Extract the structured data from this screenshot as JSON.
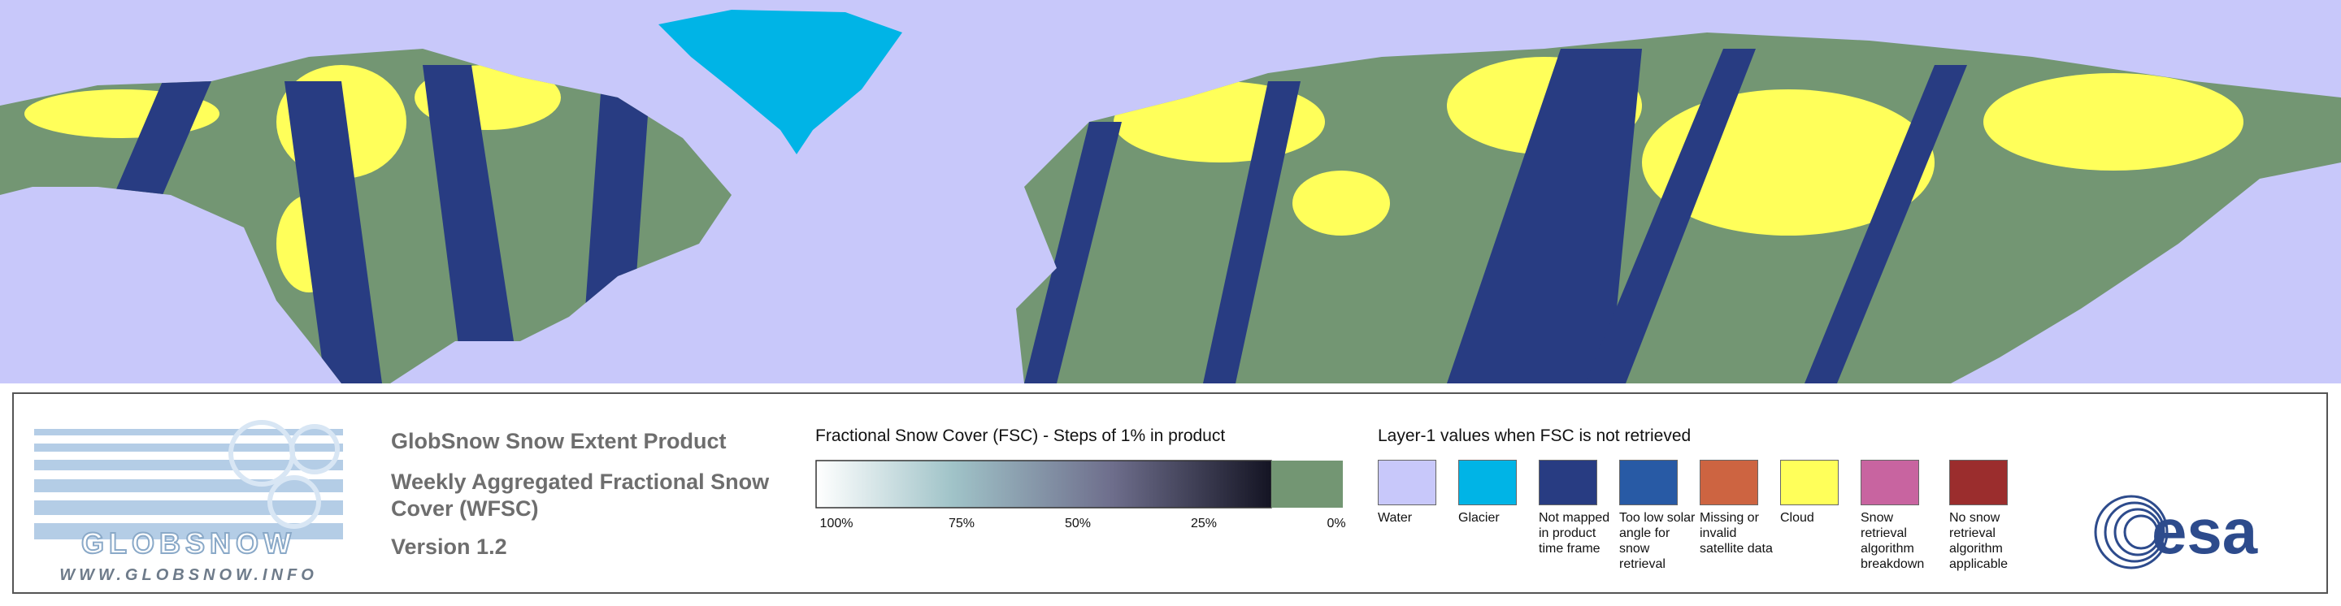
{
  "logo": {
    "brand": "GLOBSNOW",
    "url": "WWW.GLOBSNOW.INFO"
  },
  "product": {
    "title": "GlobSnow Snow Extent Product",
    "subtitle": "Weekly Aggregated Fractional Snow Cover (WFSC)",
    "version": "Version 1.2"
  },
  "fsc_scale": {
    "title": "Fractional Snow Cover (FSC) - Steps of 1% in product",
    "ticks": [
      "100%",
      "75%",
      "50%",
      "25%",
      "0%"
    ],
    "no_snow_color": "#739673"
  },
  "layer1": {
    "title": "Layer-1 values when FSC is not retrieved",
    "classes": [
      {
        "label": "Water",
        "color": "#c8c8fa"
      },
      {
        "label": "Glacier",
        "color": "#00b4e6"
      },
      {
        "label": "Not mapped in product time frame",
        "color": "#283c82"
      },
      {
        "label": "Too low solar angle for snow retrieval",
        "color": "#285aa5"
      },
      {
        "label": "Missing or invalid satellite data",
        "color": "#cd6441"
      },
      {
        "label": "Cloud",
        "color": "#ffff5a"
      },
      {
        "label": "Snow retrieval algorithm breakdown",
        "color": "#c864a0"
      },
      {
        "label": "No snow retrieval algorithm applicable",
        "color": "#9b2d2d"
      }
    ]
  },
  "agency": {
    "name": "esa"
  }
}
